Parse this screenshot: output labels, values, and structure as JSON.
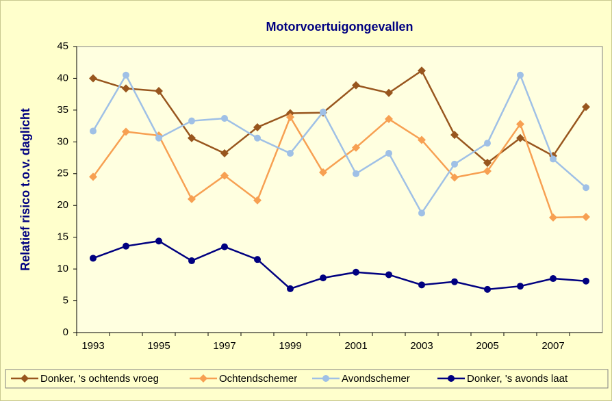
{
  "chart_data": {
    "type": "line",
    "title": "Motorvoertuigongevallen",
    "ylabel": "Relatief risico t.o.v. daglicht",
    "categories": [
      "1993",
      null,
      "1995",
      null,
      "1997",
      null,
      "1999",
      null,
      "2001",
      null,
      "2003",
      null,
      "2005",
      null,
      "2007",
      null
    ],
    "ylim": [
      0,
      45
    ],
    "yticks": [
      0,
      5,
      10,
      15,
      20,
      25,
      30,
      35,
      40,
      45
    ],
    "legend": "bottom",
    "series": [
      {
        "name": "Donker, 's ochtends vroeg",
        "color": "#98561e",
        "marker": "diamond",
        "values": [
          40,
          38.4,
          38,
          30.6,
          28.2,
          32.3,
          34.5,
          34.6,
          38.9,
          37.7,
          41.2,
          31.1,
          26.7,
          30.6,
          27.8,
          35.5
        ]
      },
      {
        "name": "Ochtendschemer",
        "color": "#f7a052",
        "marker": "diamond",
        "values": [
          24.5,
          31.6,
          31,
          21,
          24.7,
          20.8,
          33.9,
          25.2,
          29.1,
          33.6,
          30.3,
          24.4,
          25.4,
          32.8,
          18.1,
          18.2
        ]
      },
      {
        "name": "Avondschemer",
        "color": "#9fc0e6",
        "marker": "circle",
        "values": [
          31.7,
          40.5,
          30.6,
          33.3,
          33.7,
          30.6,
          28.2,
          34.7,
          25,
          28.2,
          18.8,
          26.5,
          29.8,
          40.5,
          27.3,
          22.8
        ]
      },
      {
        "name": "Donker, 's avonds laat",
        "color": "#000080",
        "marker": "circle",
        "values": [
          11.7,
          13.6,
          14.4,
          11.3,
          13.5,
          11.5,
          6.9,
          8.6,
          9.5,
          9.1,
          7.5,
          8,
          6.8,
          7.3,
          8.5,
          8.1
        ]
      }
    ]
  }
}
